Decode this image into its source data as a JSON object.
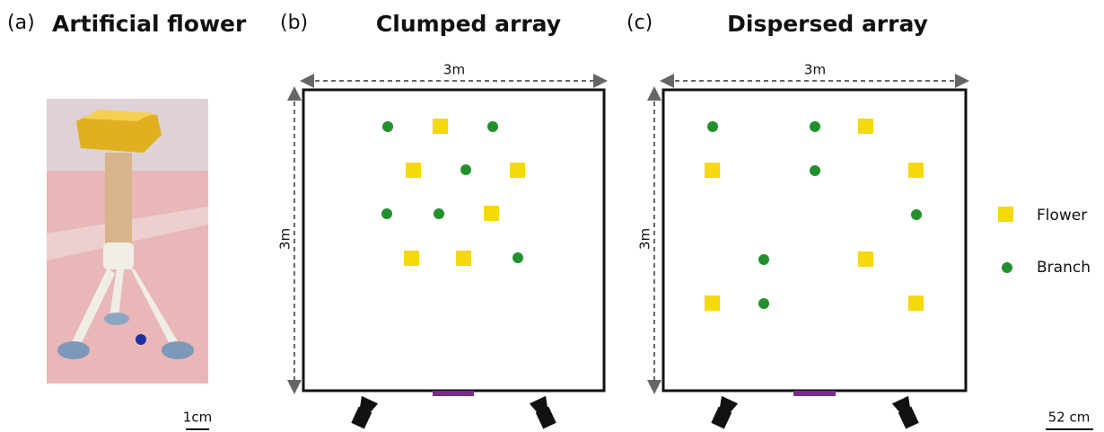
{
  "panels": [
    {
      "tag": "(a)",
      "title": "Artificial flower",
      "scale_label": "1cm"
    },
    {
      "tag": "(b)",
      "title": "Clumped array",
      "width_label": "3m",
      "height_label": "3m"
    },
    {
      "tag": "(c)",
      "title": "Dispersed array",
      "width_label": "3m",
      "height_label": "3m"
    }
  ],
  "legend": [
    {
      "label": "Flower"
    },
    {
      "label": "Branch"
    }
  ],
  "scale_label": "52 cm"
}
